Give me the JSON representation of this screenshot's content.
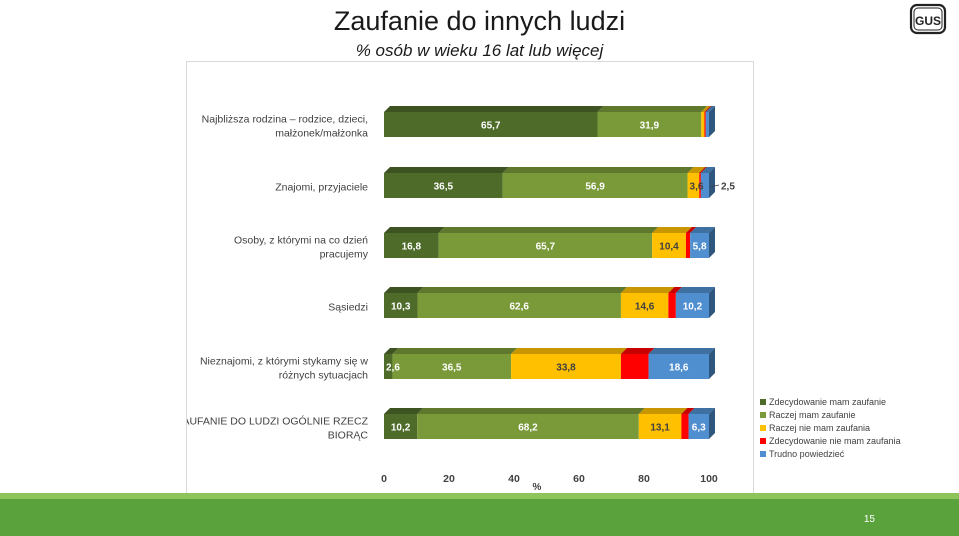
{
  "slide": {
    "title": "Zaufanie do innych ludzi",
    "subtitle": "% osób w wieku 16 lat lub więcej",
    "logo_text": "GUS",
    "page_number": "15"
  },
  "colors": {
    "bottom_bar": "#5aa23c",
    "bottom_bar_light": "#8fc45a"
  },
  "chart_data": {
    "type": "bar",
    "orientation": "horizontal",
    "stacked": true,
    "style": "3d",
    "categories": [
      "Najbliższa rodzina – rodzice, dzieci, małżonek/małżonka",
      "Znajomi, przyjaciele",
      "Osoby, z którymi na co dzień pracujemy",
      "Sąsiedzi",
      "Nieznajomi, z którymi stykamy się w różnych sytuacjach",
      "ZAUFANIE DO LUDZI OGÓLNIE RZECZ BIORĄC"
    ],
    "series": [
      {
        "name": "Zdecydowanie mam zaufanie",
        "color": "#4e6b2a",
        "values": [
          65.7,
          36.5,
          16.8,
          10.3,
          2.6,
          10.2
        ]
      },
      {
        "name": "Raczej mam zaufanie",
        "color": "#7a9a3a",
        "values": [
          31.9,
          56.9,
          65.7,
          62.6,
          36.5,
          68.2
        ]
      },
      {
        "name": "Raczej nie mam zaufania",
        "color": "#ffc000",
        "values": [
          1.0,
          3.6,
          10.4,
          14.6,
          33.8,
          13.1
        ]
      },
      {
        "name": "Zdecydowanie nie mam zaufania",
        "color": "#ff0000",
        "values": [
          0.4,
          0.5,
          1.3,
          2.3,
          8.5,
          2.2
        ]
      },
      {
        "name": "Trudno powiedzieć",
        "color": "#4f8fd0",
        "values": [
          1.0,
          2.5,
          5.8,
          10.2,
          18.6,
          6.3
        ]
      }
    ],
    "data_labels": [
      [
        "65,7",
        "31,9",
        "",
        "",
        ""
      ],
      [
        "36,5",
        "56,9",
        "3,6",
        "",
        "2,5"
      ],
      [
        "16,8",
        "65,7",
        "10,4",
        "",
        "5,8"
      ],
      [
        "10,3",
        "62,6",
        "14,6",
        "",
        "10,2"
      ],
      [
        "2,6",
        "36,5",
        "33,8",
        "",
        "18,6"
      ],
      [
        "10,2",
        "68,2",
        "13,1",
        "",
        "6,3"
      ]
    ],
    "x_ticks": [
      "0",
      "20",
      "40",
      "60",
      "80",
      "100"
    ],
    "xlim": [
      0,
      100
    ],
    "xlabel": "%",
    "legend_position": "right-bottom"
  }
}
